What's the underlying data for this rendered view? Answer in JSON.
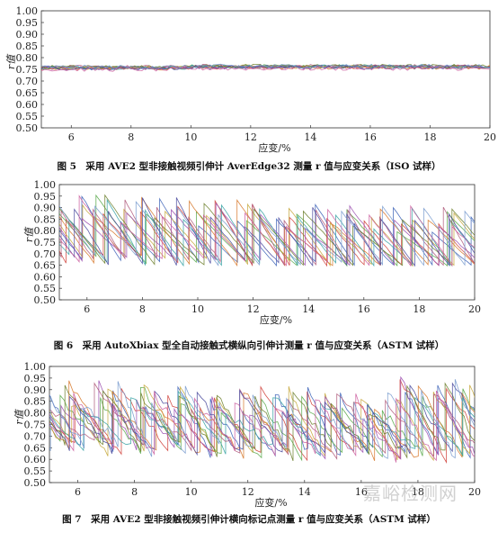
{
  "watermark": "嘉峪检测网",
  "chart_data": [
    {
      "type": "line",
      "caption": "图 5　采用 AVE2 型非接触视频引伸计 AverEdge32 测量 r 值与应变关系（ISO 试样）",
      "xlabel": "应变/%",
      "ylabel": "r值",
      "xlim": [
        5,
        20
      ],
      "ylim": [
        0.5,
        1.0
      ],
      "xticks": [
        "6",
        "8",
        "10",
        "12",
        "14",
        "16",
        "18",
        "20"
      ],
      "yticks": [
        "0.50",
        "0.55",
        "0.60",
        "0.65",
        "0.70",
        "0.75",
        "0.80",
        "0.85",
        "0.90",
        "0.95",
        "1.00"
      ],
      "grid": false,
      "series_count": 12,
      "behavior": "flat",
      "band": [
        0.74,
        0.77
      ],
      "level": 0.755
    },
    {
      "type": "line",
      "caption": "图 6　采用 AutoXbiax 型全自动接触式横纵向引伸计测量 r 值与应变关系（ASTM 试样）",
      "xlabel": "应变/%",
      "ylabel": "r值",
      "xlim": [
        5,
        20
      ],
      "ylim": [
        0.5,
        1.0
      ],
      "xticks": [
        "6",
        "8",
        "10",
        "12",
        "14",
        "16",
        "18",
        "20"
      ],
      "yticks": [
        "0.50",
        "0.55",
        "0.60",
        "0.65",
        "0.70",
        "0.75",
        "0.80",
        "0.85",
        "0.90",
        "0.95",
        "1.00"
      ],
      "grid": false,
      "series_count": 12,
      "behavior": "sawtooth",
      "band": [
        0.65,
        0.99
      ],
      "level": 0.76
    },
    {
      "type": "line",
      "caption": "图 7　采用 AVE2 型非接触视频引伸计横向标记点测量 r 值与应变关系（ASTM 试样）",
      "xlabel": "应变/%",
      "ylabel": "r值",
      "xlim": [
        5,
        20
      ],
      "ylim": [
        0.5,
        1.0
      ],
      "xticks": [
        "6",
        "8",
        "10",
        "12",
        "14",
        "16",
        "18",
        "20"
      ],
      "yticks": [
        "0.50",
        "0.55",
        "0.60",
        "0.65",
        "0.70",
        "0.75",
        "0.80",
        "0.85",
        "0.90",
        "0.95",
        "1.00"
      ],
      "grid": false,
      "series_count": 12,
      "behavior": "sawtooth-noisy",
      "band": [
        0.6,
        0.96
      ],
      "level": 0.74
    }
  ],
  "colors": [
    "#d0413b",
    "#3d63b8",
    "#59a84a",
    "#c7a83d",
    "#9b4fb0",
    "#d77a2e",
    "#38a3a5",
    "#b05c7c",
    "#6d7f2c",
    "#4b4b9e",
    "#cc5fa0",
    "#7a9ccf"
  ]
}
